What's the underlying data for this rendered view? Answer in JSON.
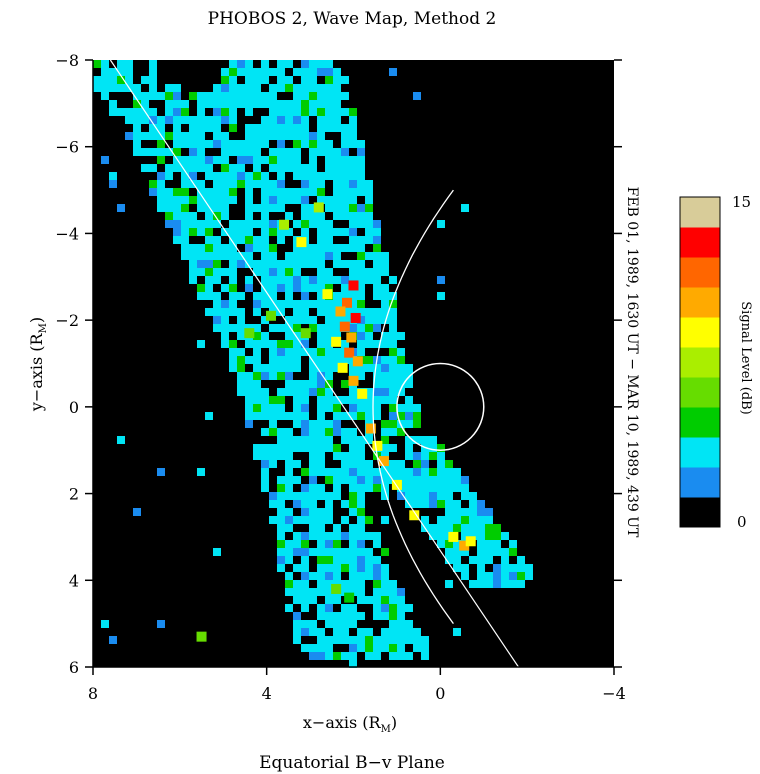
{
  "chart_data": {
    "type": "heatmap",
    "title": "PHOBOS 2, Wave Map, Method 2",
    "xlabel": "x−axis (R",
    "xlabel_sub": "M",
    "ylabel": "y−axis (R",
    "ylabel_sub": "M",
    "footer": "Equatorial B−v Plane",
    "date_range": "FEB 01, 1989, 1630 UT − MAR 10, 1989, 439 UT",
    "xlim": [
      8,
      -4
    ],
    "ylim": [
      6,
      -8
    ],
    "x_ticks": [
      {
        "v": 8,
        "t": "8"
      },
      {
        "v": 4,
        "t": "4"
      },
      {
        "v": 0,
        "t": "0"
      },
      {
        "v": -4,
        "t": "−4"
      }
    ],
    "y_ticks": [
      {
        "v": -8,
        "t": "−8"
      },
      {
        "v": -6,
        "t": "−6"
      },
      {
        "v": -4,
        "t": "−4"
      },
      {
        "v": -2,
        "t": "−2"
      },
      {
        "v": 0,
        "t": "0"
      },
      {
        "v": 2,
        "t": "2"
      },
      {
        "v": 4,
        "t": "4"
      },
      {
        "v": 6,
        "t": "6"
      }
    ],
    "colorbar": {
      "label": "Signal Level (dB)",
      "min_label": "0",
      "max_label": "15",
      "levels": [
        "#000000",
        "#1a8cf0",
        "#00e5f5",
        "#00cc00",
        "#66dd00",
        "#aaee00",
        "#ffff00",
        "#ffaa00",
        "#ff6600",
        "#ff0000",
        "#d8cc99"
      ]
    },
    "background_color": "#000000",
    "overlays": {
      "mars_circle": {
        "center": [
          0,
          0
        ],
        "radius": 1
      },
      "bow_shock": {
        "x0": 1.55,
        "n": 13.5,
        "y_from": -5.0,
        "y_to": 5.0
      },
      "trajectory_line": {
        "from": [
          7.6,
          -8
        ],
        "to": [
          -1.8,
          6
        ]
      }
    },
    "pixels": [
      {
        "x": 2.0,
        "y": -2.8,
        "level": 9
      },
      {
        "x": 2.15,
        "y": -2.4,
        "level": 8
      },
      {
        "x": 2.3,
        "y": -2.2,
        "level": 7
      },
      {
        "x": 1.95,
        "y": -2.05,
        "level": 9
      },
      {
        "x": 2.2,
        "y": -1.85,
        "level": 8
      },
      {
        "x": 2.05,
        "y": -1.6,
        "level": 7
      },
      {
        "x": 2.4,
        "y": -1.5,
        "level": 6
      },
      {
        "x": 2.1,
        "y": -1.25,
        "level": 8
      },
      {
        "x": 1.9,
        "y": -1.05,
        "level": 7
      },
      {
        "x": 2.25,
        "y": -0.9,
        "level": 6
      },
      {
        "x": 2.0,
        "y": -0.6,
        "level": 7
      },
      {
        "x": 1.8,
        "y": -0.3,
        "level": 6
      },
      {
        "x": 1.6,
        "y": 0.5,
        "level": 7
      },
      {
        "x": 1.45,
        "y": 0.9,
        "level": 6
      },
      {
        "x": 1.3,
        "y": 1.25,
        "level": 7
      },
      {
        "x": 1.0,
        "y": 1.8,
        "level": 6
      },
      {
        "x": 0.6,
        "y": 2.5,
        "level": 6
      },
      {
        "x": -0.3,
        "y": 3.0,
        "level": 6
      },
      {
        "x": -0.55,
        "y": 3.2,
        "level": 7
      },
      {
        "x": -0.7,
        "y": 3.1,
        "level": 6
      },
      {
        "x": 3.2,
        "y": -3.8,
        "level": 6
      },
      {
        "x": 3.6,
        "y": -4.2,
        "level": 5
      },
      {
        "x": 2.8,
        "y": -4.6,
        "level": 5
      },
      {
        "x": 2.6,
        "y": -2.6,
        "level": 6
      },
      {
        "x": 3.9,
        "y": -2.1,
        "level": 4
      },
      {
        "x": 4.4,
        "y": -1.7,
        "level": 4
      },
      {
        "x": 3.1,
        "y": -1.7,
        "level": 4
      },
      {
        "x": 2.4,
        "y": 4.2,
        "level": 4
      },
      {
        "x": 2.1,
        "y": 4.4,
        "level": 3
      },
      {
        "x": 5.5,
        "y": 5.3,
        "level": 4
      }
    ]
  }
}
